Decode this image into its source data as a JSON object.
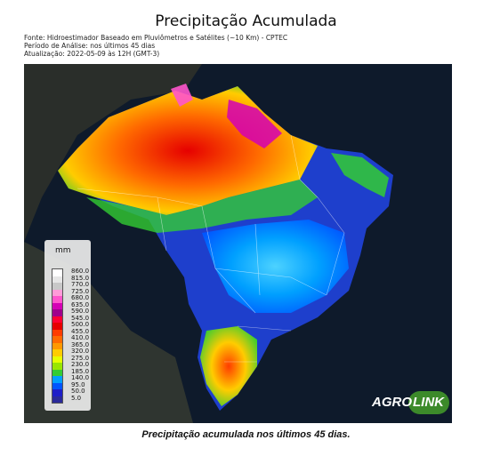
{
  "title": "Precipitação Acumulada",
  "meta": {
    "source": "Fonte: Hidroestimador Baseado em Pluviômetros e Satélites (~10 Km) - CPTEC",
    "period": "Período de Análise: nos últimos 45 dias",
    "updated": "Atualização: 2022-05-09 às 12H (GMT-3)"
  },
  "legend": {
    "unit": "mm",
    "levels": [
      "860.0",
      "815.0",
      "770.0",
      "725.0",
      "680.0",
      "635.0",
      "590.0",
      "545.0",
      "500.0",
      "455.0",
      "410.0",
      "365.0",
      "320.0",
      "275.0",
      "230.0",
      "185.0",
      "140.0",
      "95.0",
      "50.0",
      "5.0"
    ],
    "colors": [
      "#ffffff",
      "#e6e6e6",
      "#c8c8c8",
      "#ff9bd8",
      "#ff55cc",
      "#d400b5",
      "#a0008c",
      "#ff0033",
      "#e60000",
      "#ff3c00",
      "#ff6a00",
      "#ff9900",
      "#ffcc00",
      "#e6ff00",
      "#99e600",
      "#33cc33",
      "#00a0ff",
      "#0055ff",
      "#1e1ec8",
      "#2a2a9a"
    ]
  },
  "logo": {
    "part1": "AGRO",
    "part2": "LINK",
    "color": "#3c8a2a"
  },
  "caption": "Precipitação acumulada nos últimos 45 dias."
}
